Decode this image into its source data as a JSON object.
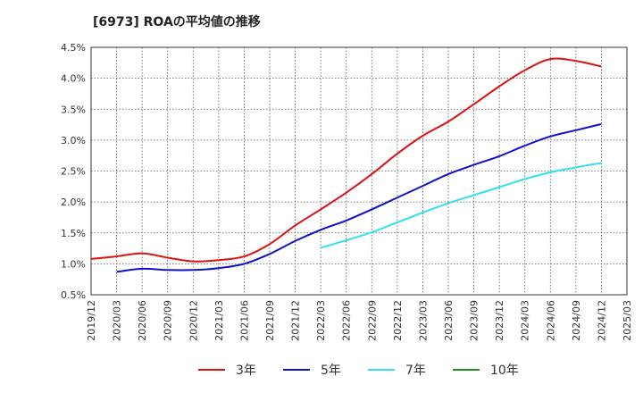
{
  "chart_data": {
    "type": "line",
    "title": "[6973]  ROAの平均値の推移",
    "xlabel": "",
    "ylabel": "",
    "ylim": [
      0.5,
      4.5
    ],
    "y_ticks": [
      "0.5%",
      "1.0%",
      "1.5%",
      "2.0%",
      "2.5%",
      "3.0%",
      "3.5%",
      "4.0%",
      "4.5%"
    ],
    "y_tick_values": [
      0.5,
      1.0,
      1.5,
      2.0,
      2.5,
      3.0,
      3.5,
      4.0,
      4.5
    ],
    "x_ticks": [
      "2019/12",
      "2020/03",
      "2020/06",
      "2020/09",
      "2020/12",
      "2021/03",
      "2021/06",
      "2021/09",
      "2021/12",
      "2022/03",
      "2022/06",
      "2022/09",
      "2022/12",
      "2023/03",
      "2023/06",
      "2023/09",
      "2023/12",
      "2024/03",
      "2024/06",
      "2024/09",
      "2024/12",
      "2025/03"
    ],
    "grid": true,
    "legend_position": "bottom",
    "series": [
      {
        "name": "3年",
        "color": "#dd1111",
        "x": [
          "2019/12",
          "2020/03",
          "2020/06",
          "2020/09",
          "2020/12",
          "2021/03",
          "2021/06",
          "2021/09",
          "2021/12",
          "2022/03",
          "2022/06",
          "2022/09",
          "2022/12",
          "2023/03",
          "2023/06",
          "2023/09",
          "2023/12",
          "2024/03",
          "2024/06",
          "2024/09",
          "2024/12"
        ],
        "values": [
          1.08,
          1.12,
          1.17,
          1.1,
          1.04,
          1.06,
          1.12,
          1.32,
          1.62,
          1.88,
          2.15,
          2.45,
          2.78,
          3.07,
          3.3,
          3.58,
          3.87,
          4.13,
          4.31,
          4.28,
          4.19
        ]
      },
      {
        "name": "5年",
        "color": "#1111cc",
        "x": [
          "2020/03",
          "2020/06",
          "2020/09",
          "2020/12",
          "2021/03",
          "2021/06",
          "2021/09",
          "2021/12",
          "2022/03",
          "2022/06",
          "2022/09",
          "2022/12",
          "2023/03",
          "2023/06",
          "2023/09",
          "2023/12",
          "2024/03",
          "2024/06",
          "2024/09",
          "2024/12"
        ],
        "values": [
          0.87,
          0.92,
          0.9,
          0.9,
          0.93,
          1.0,
          1.16,
          1.37,
          1.55,
          1.7,
          1.88,
          2.07,
          2.26,
          2.45,
          2.6,
          2.74,
          2.91,
          3.06,
          3.16,
          3.26
        ]
      },
      {
        "name": "7年",
        "color": "#33e0f0",
        "x": [
          "2022/03",
          "2022/06",
          "2022/09",
          "2022/12",
          "2023/03",
          "2023/06",
          "2023/09",
          "2023/12",
          "2024/03",
          "2024/06",
          "2024/09",
          "2024/12"
        ],
        "values": [
          1.26,
          1.38,
          1.51,
          1.67,
          1.83,
          1.98,
          2.11,
          2.24,
          2.37,
          2.48,
          2.56,
          2.63
        ]
      },
      {
        "name": "10年",
        "color": "#228b22",
        "x": [],
        "values": []
      }
    ]
  }
}
